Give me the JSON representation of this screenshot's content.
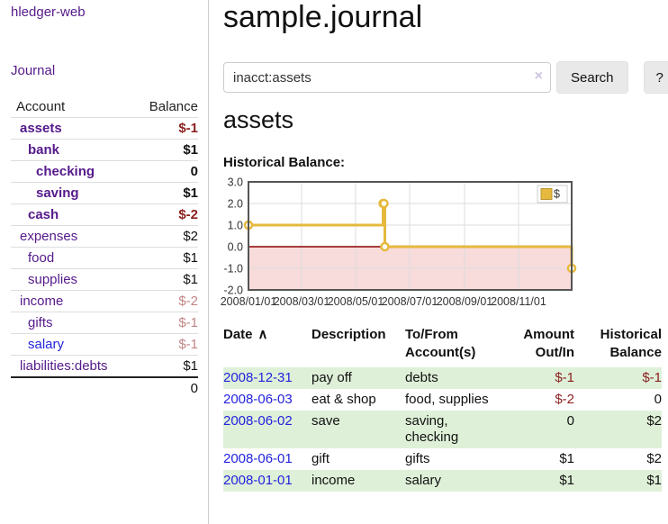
{
  "brand": "hledger-web",
  "nav": {
    "journal": "Journal"
  },
  "page": {
    "title": "sample.journal",
    "account_heading": "assets",
    "chart_heading": "Historical Balance:"
  },
  "search": {
    "value": "inacct:assets",
    "clear_icon": "×",
    "button_label": "Search",
    "help_label": "?"
  },
  "colors": {
    "accent_purple": "#551a8b",
    "link_blue": "#2323dd",
    "negative": "#8b1f1f",
    "negative_muted": "#c28686",
    "stripe_green": "#dff0d8"
  },
  "sidebar_table": {
    "headers": {
      "account": "Account",
      "balance": "Balance"
    },
    "rows": [
      {
        "account": "assets",
        "balance": "$-1",
        "level": 1,
        "matched": true,
        "balance_tone": "negative",
        "link_tone": "purple"
      },
      {
        "account": "bank",
        "balance": "$1",
        "level": 2,
        "matched": true,
        "balance_tone": "normal",
        "link_tone": "purple"
      },
      {
        "account": "checking",
        "balance": "0",
        "level": 3,
        "matched": true,
        "balance_tone": "normal",
        "link_tone": "purple"
      },
      {
        "account": "saving",
        "balance": "$1",
        "level": 3,
        "matched": true,
        "balance_tone": "normal",
        "link_tone": "purple"
      },
      {
        "account": "cash",
        "balance": "$-2",
        "level": 2,
        "matched": true,
        "balance_tone": "negative",
        "link_tone": "purple"
      },
      {
        "account": "expenses",
        "balance": "$2",
        "level": 1,
        "matched": false,
        "balance_tone": "normal",
        "link_tone": "purple"
      },
      {
        "account": "food",
        "balance": "$1",
        "level": 2,
        "matched": false,
        "balance_tone": "normal",
        "link_tone": "purple"
      },
      {
        "account": "supplies",
        "balance": "$1",
        "level": 2,
        "matched": false,
        "balance_tone": "normal",
        "link_tone": "purple"
      },
      {
        "account": "income",
        "balance": "$-2",
        "level": 1,
        "matched": false,
        "balance_tone": "muted",
        "link_tone": "purple"
      },
      {
        "account": "gifts",
        "balance": "$-1",
        "level": 2,
        "matched": false,
        "balance_tone": "muted",
        "link_tone": "purple"
      },
      {
        "account": "salary",
        "balance": "$-1",
        "level": 2,
        "matched": false,
        "balance_tone": "muted",
        "link_tone": "blue"
      },
      {
        "account": "liabilities:debts",
        "balance": "$1",
        "level": 1,
        "matched": false,
        "balance_tone": "normal",
        "link_tone": "purple"
      }
    ],
    "total": "0"
  },
  "register": {
    "headers": {
      "date": "Date",
      "sort_icon": "∧",
      "description": "Description",
      "account": "To/From Account(s)",
      "amount": "Amount Out/In",
      "balance": "Historical Balance"
    },
    "rows": [
      {
        "date": "2008-12-31",
        "description": "pay off",
        "accounts": "debts",
        "amount": "$-1",
        "amount_tone": "negative",
        "balance": "$-1",
        "balance_tone": "negative"
      },
      {
        "date": "2008-06-03",
        "description": "eat & shop",
        "accounts": "food, supplies",
        "amount": "$-2",
        "amount_tone": "negative",
        "balance": "0",
        "balance_tone": "normal"
      },
      {
        "date": "2008-06-02",
        "description": "save",
        "accounts": "saving, checking",
        "amount": "0",
        "amount_tone": "normal",
        "balance": "$2",
        "balance_tone": "normal"
      },
      {
        "date": "2008-06-01",
        "description": "gift",
        "accounts": "gifts",
        "amount": "$1",
        "amount_tone": "normal",
        "balance": "$2",
        "balance_tone": "normal"
      },
      {
        "date": "2008-01-01",
        "description": "income",
        "accounts": "salary",
        "amount": "$1",
        "amount_tone": "normal",
        "balance": "$1",
        "balance_tone": "normal"
      }
    ]
  },
  "chart_data": {
    "type": "line",
    "step": true,
    "title": "Historical Balance:",
    "legend": "$",
    "legend_position": "top-right",
    "grid": true,
    "xrange": [
      "2008-01-01",
      "2008-12-31"
    ],
    "ylim": [
      -2,
      3
    ],
    "series": [
      {
        "name": "$",
        "points": [
          {
            "date": "2008-01-01",
            "value": 1
          },
          {
            "date": "2008-06-01",
            "value": 2
          },
          {
            "date": "2008-06-02",
            "value": 2
          },
          {
            "date": "2008-06-03",
            "value": 0
          },
          {
            "date": "2008-12-31",
            "value": -1
          }
        ]
      }
    ],
    "yticks": [
      {
        "value": 3,
        "label": "3.0"
      },
      {
        "value": 2,
        "label": "2.0"
      },
      {
        "value": 1,
        "label": "1.0"
      },
      {
        "value": 0,
        "label": "0.0"
      },
      {
        "value": -1,
        "label": "-1.0"
      },
      {
        "value": -2,
        "label": "-2.0"
      }
    ],
    "xticks": [
      {
        "date": "2008-01-01",
        "label": "2008/01/01"
      },
      {
        "date": "2008-03-01",
        "label": "2008/03/01"
      },
      {
        "date": "2008-05-01",
        "label": "2008/05/01"
      },
      {
        "date": "2008-07-01",
        "label": "2008/07/01"
      },
      {
        "date": "2008-09-01",
        "label": "2008/09/01"
      },
      {
        "date": "2008-11-01",
        "label": "2008/11/01"
      }
    ],
    "colors": {
      "series": "#e6b93e",
      "series_border": "#b8962e",
      "zero_line": "#8b0000",
      "negative_region": "#f8dbdb",
      "gridline": "#dcdcdc",
      "plot_border": "#555555"
    }
  }
}
